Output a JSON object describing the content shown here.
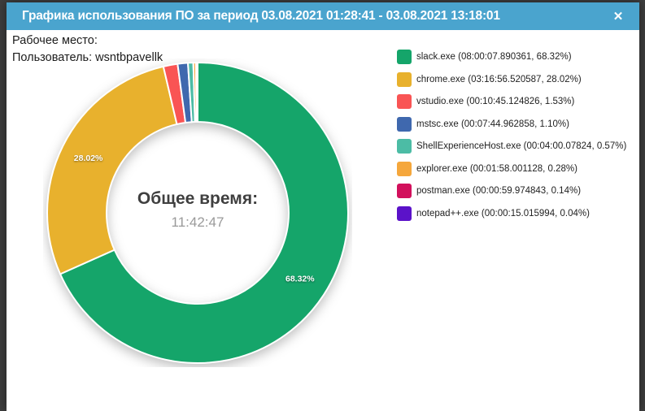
{
  "dialog": {
    "title": "Графика использования ПО за период 03.08.2021 01:28:41 - 03.08.2021 13:18:01",
    "close_glyph": "✕"
  },
  "info": {
    "workplace_label": "Рабочее место:",
    "workplace_value": "",
    "user_label": "Пользователь:",
    "user_value": "wsntbpavellk"
  },
  "colors": {
    "titlebar": "#4AA4CE",
    "frame_background": "#3E3E3E",
    "dialog_background": "#FFFFFF"
  },
  "chart_data": {
    "type": "pie",
    "donut": true,
    "start_angle": "top, clockwise",
    "legend_position": "right",
    "center_label": "Общее время:",
    "center_value": "11:42:47",
    "slice_label_min_percent": 2,
    "series": [
      {
        "name": "slack.exe",
        "duration": "08:00:07.890361",
        "percent": 68.32,
        "color": "#15A56A"
      },
      {
        "name": "chrome.exe",
        "duration": "03:16:56.520587",
        "percent": 28.02,
        "color": "#E8B12D"
      },
      {
        "name": "vstudio.exe",
        "duration": "00:10:45.124826",
        "percent": 1.53,
        "color": "#F95454"
      },
      {
        "name": "mstsc.exe",
        "duration": "00:07:44.962858",
        "percent": 1.1,
        "color": "#3F68AE"
      },
      {
        "name": "ShellExperienceHost.exe",
        "duration": "00:04:00.07824",
        "percent": 0.57,
        "color": "#4CBCA5"
      },
      {
        "name": "explorer.exe",
        "duration": "00:01:58.001128",
        "percent": 0.28,
        "color": "#F5A73C"
      },
      {
        "name": "postman.exe",
        "duration": "00:00:59.974843",
        "percent": 0.14,
        "color": "#D2105C"
      },
      {
        "name": "notepad++.exe",
        "duration": "00:00:15.015994",
        "percent": 0.04,
        "color": "#5B12C9"
      }
    ]
  }
}
